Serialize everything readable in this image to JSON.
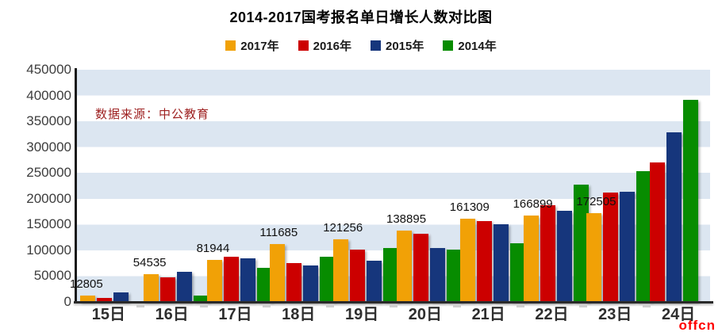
{
  "title": "2014-2017国考报名单日增长人数对比图",
  "watermark": "数据来源：中公教育",
  "brand_logo": "offcn",
  "colors": {
    "band_light": "#dce6f1",
    "band_white": "#ffffff",
    "watermark_red": "#9e2121",
    "logo_red": "#ff0000"
  },
  "chart_data": {
    "type": "bar",
    "title": "2014-2017国考报名单日增长人数对比图",
    "categories": [
      "15日",
      "16日",
      "17日",
      "18日",
      "19日",
      "20日",
      "21日",
      "22日",
      "23日",
      "24日"
    ],
    "series": [
      {
        "name": "2017年",
        "color": "#f1a106",
        "values": [
          12805,
          54535,
          81944,
          111685,
          121256,
          138895,
          161309,
          166899,
          172505,
          null
        ]
      },
      {
        "name": "2016年",
        "color": "#cc0000",
        "values": [
          8000,
          48000,
          88000,
          75000,
          101000,
          132000,
          156000,
          187000,
          212000,
          271000
        ]
      },
      {
        "name": "2015年",
        "color": "#16367c",
        "values": [
          18000,
          58000,
          84000,
          70000,
          80000,
          104000,
          150000,
          176000,
          213000,
          329000
        ]
      },
      {
        "name": "2014年",
        "color": "#078c00",
        "values": [
          null,
          12000,
          66000,
          88000,
          105000,
          102000,
          114000,
          227000,
          253000,
          391000
        ]
      }
    ],
    "data_labels": [
      "12805",
      "54535",
      "81944",
      "111685",
      "121256",
      "138895",
      "161309",
      "166899",
      "172505",
      ""
    ],
    "data_label_series": "2017年",
    "xlabel": "",
    "ylabel": "",
    "ylim": [
      0,
      450000
    ],
    "y_ticks": [
      0,
      50000,
      100000,
      150000,
      200000,
      250000,
      300000,
      350000,
      400000,
      450000
    ],
    "grid": "alternating-horizontal-bands",
    "legend_position": "top"
  }
}
